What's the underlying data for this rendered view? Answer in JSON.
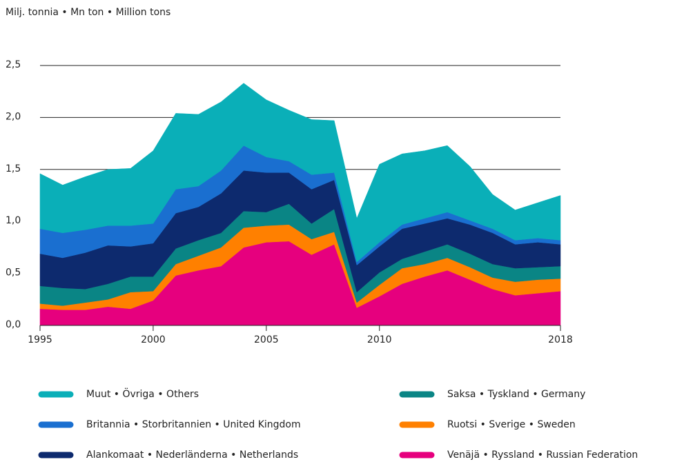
{
  "chart_data": {
    "type": "stacked-area",
    "title": "Milj. tonnia • Mn ton • Million tons",
    "x": [
      1995,
      1996,
      1997,
      1998,
      1999,
      2000,
      2001,
      2002,
      2003,
      2004,
      2005,
      2006,
      2007,
      2008,
      2009,
      2010,
      2011,
      2012,
      2013,
      2014,
      2015,
      2016,
      2017,
      2018
    ],
    "xlim": [
      1995,
      2018
    ],
    "xticks": [
      1995,
      2000,
      2005,
      2010,
      2018
    ],
    "ylim": [
      0,
      2.5
    ],
    "yticks": [
      {
        "value": 0,
        "label": "0,0"
      },
      {
        "value": 0.5,
        "label": "0,5"
      },
      {
        "value": 1,
        "label": "1,0"
      },
      {
        "value": 1.5,
        "label": "1,5"
      },
      {
        "value": 2,
        "label": "2,0"
      },
      {
        "value": 2.5,
        "label": "2,5"
      }
    ],
    "grid": true,
    "series": [
      {
        "name": "Muut • Övriga • Others",
        "color": "#0aafb8",
        "values": [
          0.53,
          0.46,
          0.51,
          0.54,
          0.55,
          0.7,
          0.73,
          0.69,
          0.66,
          0.6,
          0.55,
          0.49,
          0.53,
          0.5,
          0.42,
          0.75,
          0.68,
          0.65,
          0.64,
          0.52,
          0.33,
          0.29,
          0.34,
          0.43
        ]
      },
      {
        "name": "Britannia • Storbritannien • United Kingdom",
        "color": "#1a6fd0",
        "values": [
          0.24,
          0.24,
          0.22,
          0.19,
          0.2,
          0.19,
          0.23,
          0.2,
          0.22,
          0.24,
          0.15,
          0.11,
          0.14,
          0.07,
          0.03,
          0.04,
          0.04,
          0.05,
          0.06,
          0.04,
          0.04,
          0.04,
          0.04,
          0.04
        ]
      },
      {
        "name": "Alankomaat • Nederländerna • Netherlands",
        "color": "#0d2a6e",
        "values": [
          0.31,
          0.29,
          0.35,
          0.37,
          0.29,
          0.32,
          0.34,
          0.32,
          0.38,
          0.39,
          0.38,
          0.3,
          0.33,
          0.28,
          0.26,
          0.25,
          0.29,
          0.27,
          0.25,
          0.28,
          0.3,
          0.23,
          0.24,
          0.21
        ]
      },
      {
        "name": "Saksa • Tyskland • Germany",
        "color": "#0a8585",
        "values": [
          0.17,
          0.17,
          0.13,
          0.15,
          0.15,
          0.14,
          0.15,
          0.15,
          0.14,
          0.16,
          0.13,
          0.2,
          0.15,
          0.22,
          0.1,
          0.12,
          0.09,
          0.12,
          0.13,
          0.13,
          0.13,
          0.13,
          0.12,
          0.12
        ]
      },
      {
        "name": "Ruotsi • Sverige • Sweden",
        "color": "#ff8000",
        "values": [
          0.05,
          0.04,
          0.07,
          0.07,
          0.16,
          0.09,
          0.11,
          0.14,
          0.18,
          0.19,
          0.16,
          0.16,
          0.15,
          0.12,
          0.05,
          0.11,
          0.15,
          0.12,
          0.12,
          0.12,
          0.11,
          0.13,
          0.13,
          0.12
        ]
      },
      {
        "name": "Venäjä • Ryssland • Russian Federation",
        "color": "#e6007e",
        "values": [
          0.16,
          0.15,
          0.15,
          0.18,
          0.16,
          0.24,
          0.48,
          0.53,
          0.57,
          0.75,
          0.8,
          0.81,
          0.68,
          0.78,
          0.17,
          0.28,
          0.4,
          0.47,
          0.53,
          0.44,
          0.35,
          0.29,
          0.31,
          0.33
        ]
      }
    ]
  }
}
